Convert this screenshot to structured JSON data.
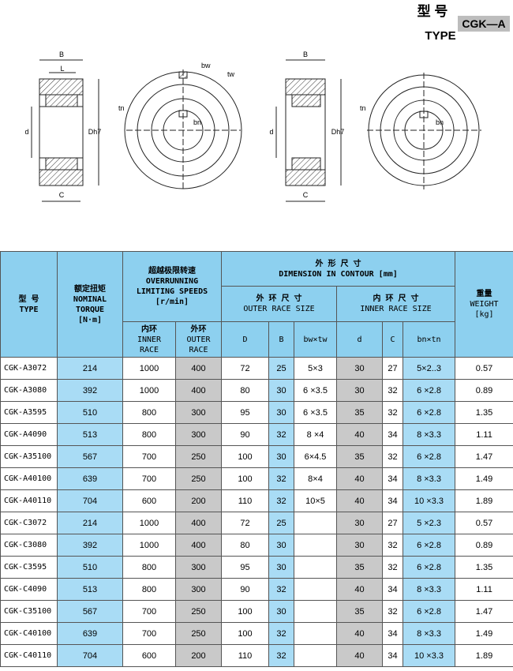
{
  "header": {
    "title_cn": "型 号",
    "title_en": "TYPE",
    "model": "CGK—A"
  },
  "drawings": {
    "left": {
      "width": "B",
      "length": "L",
      "bore": "d",
      "outer": "Dh7",
      "c": "C",
      "bw": "bw",
      "tw": "tw",
      "tn": "tn",
      "bn": "bn"
    },
    "right": {
      "width": "B",
      "bore": "d",
      "outer": "Dh7",
      "c": "C",
      "tn": "tn",
      "bn": "bn"
    }
  },
  "table": {
    "headers": {
      "type": [
        "型  号",
        "TYPE"
      ],
      "torque": [
        "额定扭矩",
        "NOMINAL",
        "TORQUE",
        "[N·m]"
      ],
      "speeds": [
        "超越极限转速",
        "OVERRUNNING",
        "LIMITING SPEEDS",
        "[r/min]"
      ],
      "inner_race": [
        "内环",
        "INNER",
        "RACE"
      ],
      "outer_race": [
        "外环",
        "OUTER",
        "RACE"
      ],
      "dimension": [
        "外    形    尺    寸",
        "DIMENSION IN CONTOUR [mm]"
      ],
      "outer_size": [
        "外 环 尺 寸",
        "OUTER RACE SIZE"
      ],
      "inner_size": [
        "内 环 尺 寸",
        "INNER RACE SIZE"
      ],
      "D": "D",
      "B": "B",
      "bw_tw": "bw×tw",
      "d": "d",
      "C": "C",
      "bn_tn": "bn×tn",
      "weight": [
        "重量",
        "WEIGHT",
        "[kg]"
      ]
    },
    "rows": [
      [
        "CGK-A3072",
        "214",
        "1000",
        "400",
        "72",
        "25",
        "5×3",
        "30",
        "27",
        "5×2..3",
        "0.57"
      ],
      [
        "CGK-A3080",
        "392",
        "1000",
        "400",
        "80",
        "30",
        "6 ×3.5",
        "30",
        "32",
        "6 ×2.8",
        "0.89"
      ],
      [
        "CGK-A3595",
        "510",
        "800",
        "300",
        "95",
        "30",
        "6 ×3.5",
        "35",
        "32",
        "6 ×2.8",
        "1.35"
      ],
      [
        "CGK-A4090",
        "513",
        "800",
        "300",
        "90",
        "32",
        "8 ×4",
        "40",
        "34",
        "8 ×3.3",
        "1.11"
      ],
      [
        "CGK-A35100",
        "567",
        "700",
        "250",
        "100",
        "30",
        "6×4.5",
        "35",
        "32",
        "6 ×2.8",
        "1.47"
      ],
      [
        "CGK-A40100",
        "639",
        "700",
        "250",
        "100",
        "32",
        "8×4",
        "40",
        "34",
        "8 ×3.3",
        "1.49"
      ],
      [
        "CGK-A40110",
        "704",
        "600",
        "200",
        "110",
        "32",
        "10×5",
        "40",
        "34",
        "10 ×3.3",
        "1.89"
      ],
      [
        "CGK-C3072",
        "214",
        "1000",
        "400",
        "72",
        "25",
        null,
        "30",
        "27",
        "5 ×2.3",
        "0.57"
      ],
      [
        "CGK-C3080",
        "392",
        "1000",
        "400",
        "80",
        "30",
        null,
        "30",
        "32",
        "6 ×2.8",
        "0.89"
      ],
      [
        "CGK-C3595",
        "510",
        "800",
        "300",
        "95",
        "30",
        null,
        "35",
        "32",
        "6 ×2.8",
        "1.35"
      ],
      [
        "CGK-C4090",
        "513",
        "800",
        "300",
        "90",
        "32",
        null,
        "40",
        "34",
        "8 ×3.3",
        "1.11"
      ],
      [
        "CGK-C35100",
        "567",
        "700",
        "250",
        "100",
        "30",
        null,
        "35",
        "32",
        "6 ×2.8",
        "1.47"
      ],
      [
        "CGK-C40100",
        "639",
        "700",
        "250",
        "100",
        "32",
        null,
        "40",
        "34",
        "8 ×3.3",
        "1.49"
      ],
      [
        "CGK-C40110",
        "704",
        "600",
        "200",
        "110",
        "32",
        null,
        "40",
        "34",
        "10 ×3.3",
        "1.89"
      ]
    ]
  }
}
